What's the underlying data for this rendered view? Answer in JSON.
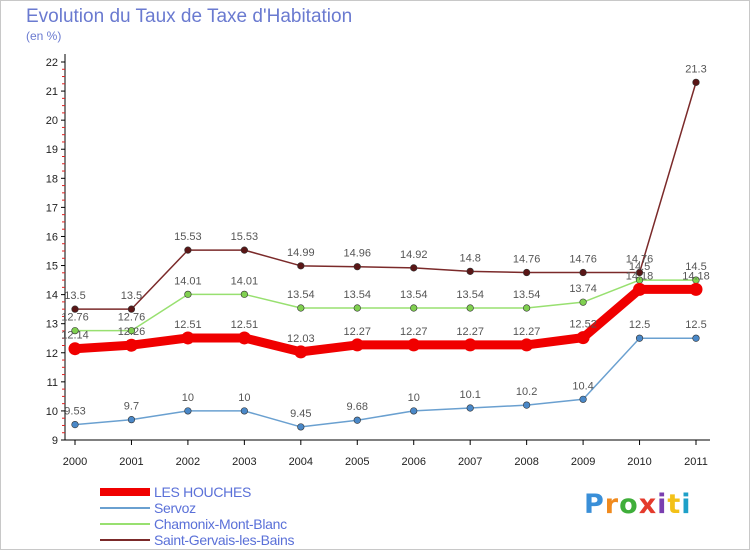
{
  "title": "Evolution du Taux de Taxe d'Habitation",
  "subtitle": "(en %)",
  "logo": {
    "text": "Proxiti",
    "letters": [
      "P",
      "r",
      "o",
      "x",
      "i",
      "t",
      "i"
    ],
    "colors": [
      "#3a8fd8",
      "#f08a1e",
      "#3fae3a",
      "#e43a2c",
      "#7a3fb0",
      "#f3c118",
      "#1ea0c8"
    ]
  },
  "chart_data": {
    "type": "line",
    "title": "Evolution du Taux de Taxe d'Habitation",
    "ylabel": "(en %)",
    "xlabel": "",
    "x": [
      "2000",
      "2001",
      "2002",
      "2003",
      "2004",
      "2005",
      "2006",
      "2007",
      "2008",
      "2009",
      "2010",
      "2011"
    ],
    "ylim": [
      9,
      22
    ],
    "yticks": [
      "9",
      "10",
      "11",
      "12",
      "13",
      "14",
      "15",
      "16",
      "17",
      "18",
      "19",
      "20",
      "21",
      "22"
    ],
    "grid": false,
    "legend_position": "bottom-left",
    "series": [
      {
        "name": "Saint-Gervais-les-Bains",
        "color": "#7b2a2a",
        "marker": "#5a1616",
        "values": [
          13.5,
          13.5,
          15.53,
          15.53,
          14.99,
          14.96,
          14.92,
          14.8,
          14.76,
          14.76,
          14.76,
          21.3
        ],
        "labels": [
          "13.5",
          "13.5",
          "15.53",
          "15.53",
          "14.99",
          "14.96",
          "14.92",
          "14.8",
          "14.76",
          "14.76",
          "14.76",
          "21.3"
        ]
      },
      {
        "name": "Chamonix-Mont-Blanc",
        "color": "#98e070",
        "marker": "#80d050",
        "values": [
          12.76,
          12.76,
          14.01,
          14.01,
          13.54,
          13.54,
          13.54,
          13.54,
          13.54,
          13.74,
          14.5,
          14.5
        ],
        "labels": [
          "12.76",
          "12.76",
          "14.01",
          "14.01",
          "13.54",
          "13.54",
          "13.54",
          "13.54",
          "13.54",
          "13.74",
          "14.5",
          "14.5"
        ]
      },
      {
        "name": "Servoz",
        "color": "#6aa0d0",
        "marker": "#4a88c8",
        "values": [
          9.53,
          9.7,
          10,
          10,
          9.45,
          9.68,
          10,
          10.1,
          10.2,
          10.4,
          12.5,
          12.5
        ],
        "labels": [
          "9.53",
          "9.7",
          "10",
          "10",
          "9.45",
          "9.68",
          "10",
          "10.1",
          "10.2",
          "10.4",
          "12.5",
          "12.5"
        ]
      },
      {
        "name": "LES HOUCHES",
        "color": "#f00000",
        "marker": "#f00000",
        "values": [
          12.14,
          12.26,
          12.51,
          12.51,
          12.03,
          12.27,
          12.27,
          12.27,
          12.27,
          12.52,
          14.18,
          14.18
        ],
        "labels": [
          "12.14",
          "12.26",
          "12.51",
          "12.51",
          "12.03",
          "12.27",
          "12.27",
          "12.27",
          "12.27",
          "12.52",
          "14.18",
          "14.18"
        ]
      }
    ],
    "legend": [
      "LES HOUCHES",
      "Servoz",
      "Chamonix-Mont-Blanc",
      "Saint-Gervais-les-Bains"
    ]
  }
}
